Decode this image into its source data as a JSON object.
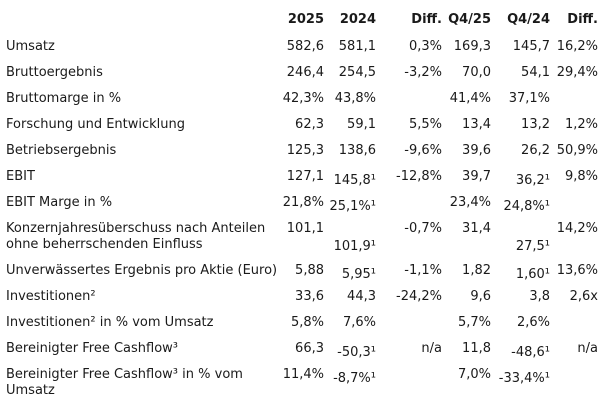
{
  "table": {
    "header": {
      "label_col": "",
      "cols": [
        "2025",
        "2024",
        "Diff.",
        "Q4/25",
        "Q4/24",
        "Diff."
      ]
    },
    "rows": [
      {
        "label": "Umsatz",
        "values": [
          "582,6",
          "581,1",
          "0,3%",
          "169,3",
          "145,7",
          "16,2%"
        ]
      },
      {
        "label": "Bruttoergebnis",
        "values": [
          "246,4",
          "254,5",
          "-3,2%",
          "70,0",
          "54,1",
          "29,4%"
        ]
      },
      {
        "label": "Bruttomarge in %",
        "values": [
          "42,3%",
          "43,8%",
          "",
          "41,4%",
          "37,1%",
          ""
        ]
      },
      {
        "label": "Forschung und Entwicklung",
        "values": [
          "62,3",
          "59,1",
          "5,5%",
          "13,4",
          "13,2",
          "1,2%"
        ]
      },
      {
        "label": "Betriebsergebnis",
        "values": [
          "125,3",
          "138,6",
          "-9,6%",
          "39,6",
          "26,2",
          "50,9%"
        ]
      },
      {
        "label": "EBIT",
        "values": [
          "127,1",
          "145,8¹",
          "-12,8%",
          "39,7",
          "36,2¹",
          "9,8%"
        ]
      },
      {
        "label": "EBIT Marge in %",
        "values": [
          "21,8%",
          "25,1%¹",
          "",
          "23,4%",
          "24,8%¹",
          ""
        ]
      },
      {
        "label": "Konzernjahresüberschuss nach Anteilen\nohne beherrschenden Einfluss",
        "values": [
          "101,1",
          "101,9¹",
          "-0,7%",
          "31,4",
          "27,5¹",
          "14,2%"
        ]
      },
      {
        "label": "Unverwässertes Ergebnis pro Aktie (Euro)",
        "values": [
          "5,88",
          "5,95¹",
          "-1,1%",
          "1,82",
          "1,60¹",
          "13,6%"
        ]
      },
      {
        "label": "Investitionen²",
        "values": [
          "33,6",
          "44,3",
          "-24,2%",
          "9,6",
          "3,8",
          "2,6x"
        ]
      },
      {
        "label": "Investitionen² in % vom Umsatz",
        "values": [
          "5,8%",
          "7,6%",
          "",
          "5,7%",
          "2,6%",
          ""
        ]
      },
      {
        "label": "Bereinigter Free Cashflow³",
        "values": [
          "66,3",
          "-50,3¹",
          "n/a",
          "11,8",
          "-48,6¹",
          "n/a"
        ]
      },
      {
        "label": "Bereinigter Free Cashflow³ in % vom\nUmsatz",
        "values": [
          "11,4%",
          "-8,7%¹",
          "",
          "7,0%",
          "-33,4%¹",
          ""
        ]
      }
    ]
  }
}
